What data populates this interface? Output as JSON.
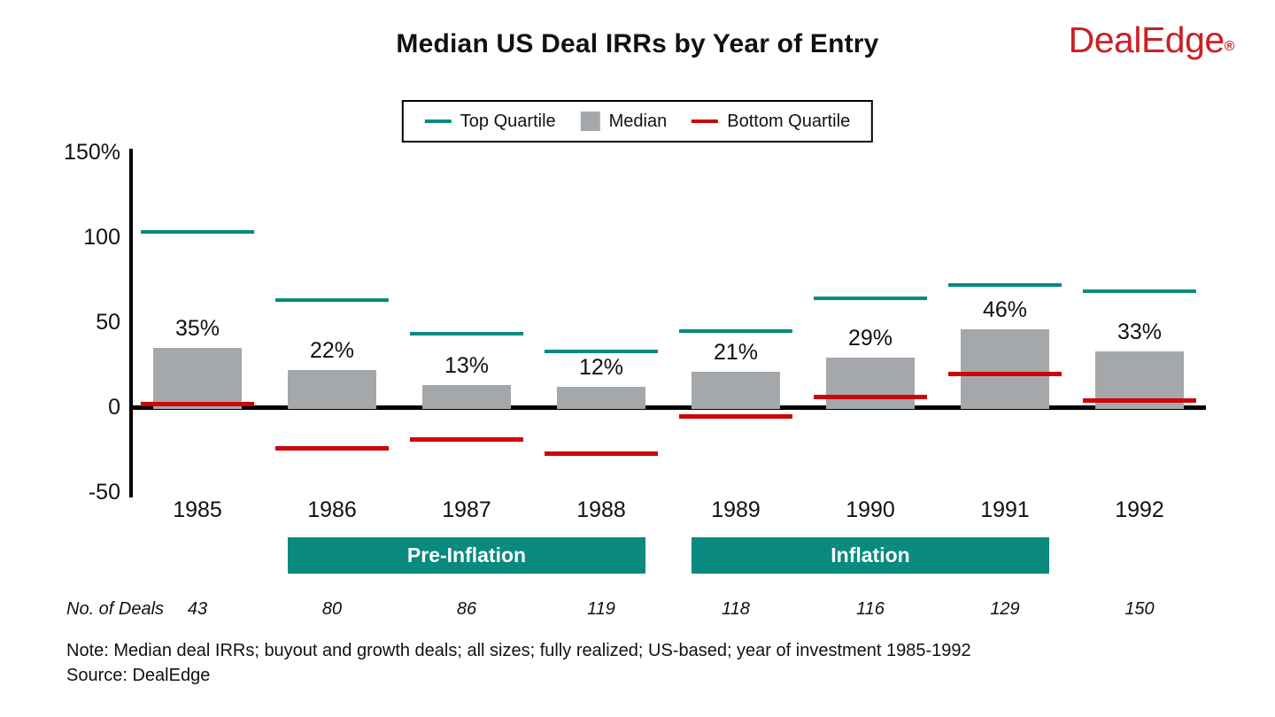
{
  "header": {
    "title": "Median US Deal IRRs by Year of Entry",
    "logo_text": "DealEdge",
    "logo_reg": "®",
    "logo_color": "#cb2026"
  },
  "legend": {
    "items": [
      {
        "label": "Top Quartile",
        "swatch": "line",
        "color": "#088a7e"
      },
      {
        "label": "Median",
        "swatch": "box",
        "color": "#a5a8ab"
      },
      {
        "label": "Bottom Quartile",
        "swatch": "line",
        "color": "#cc0707"
      }
    ]
  },
  "chart_data": {
    "type": "bar",
    "title": "Median US Deal IRRs by Year of Entry",
    "categories": [
      "1985",
      "1986",
      "1987",
      "1988",
      "1989",
      "1990",
      "1991",
      "1992"
    ],
    "series": [
      {
        "name": "Top Quartile",
        "style": "dash",
        "color": "#088a7e",
        "values": [
          103,
          63,
          43,
          33,
          45,
          64,
          72,
          68
        ]
      },
      {
        "name": "Median",
        "style": "bar",
        "color": "#a5a8ab",
        "values": [
          35,
          22,
          13,
          12,
          21,
          29,
          46,
          33
        ],
        "labels": [
          "35%",
          "22%",
          "13%",
          "12%",
          "21%",
          "29%",
          "46%",
          "33%"
        ]
      },
      {
        "name": "Bottom Quartile",
        "style": "dash",
        "color": "#cc0707",
        "values": [
          2,
          -24,
          -19,
          -27,
          -5,
          6,
          20,
          4
        ]
      }
    ],
    "xlabel": "",
    "ylabel": "",
    "ylim": [
      -50,
      150
    ],
    "yticks": [
      {
        "label": "150%",
        "value": 150
      },
      {
        "label": "100",
        "value": 100
      },
      {
        "label": "50",
        "value": 50
      },
      {
        "label": "0",
        "value": 0
      },
      {
        "label": "-50",
        "value": -50
      }
    ],
    "grid": false,
    "legend_position": "top-center",
    "x_bands": [
      {
        "label": "Pre-Inflation",
        "from": "1986",
        "to": "1988",
        "color": "#088a7e",
        "text_color": "#ffffff"
      },
      {
        "label": "Inflation",
        "from": "1989",
        "to": "1991",
        "color": "#088a7e",
        "text_color": "#ffffff"
      }
    ]
  },
  "deals_row": {
    "label": "No. of Deals",
    "values": [
      "43",
      "80",
      "86",
      "119",
      "118",
      "116",
      "129",
      "150"
    ]
  },
  "footnote": {
    "note": "Note: Median deal IRRs; buyout and growth deals; all sizes; fully realized; US-based; year of investment 1985-1992",
    "source": "Source: DealEdge"
  }
}
